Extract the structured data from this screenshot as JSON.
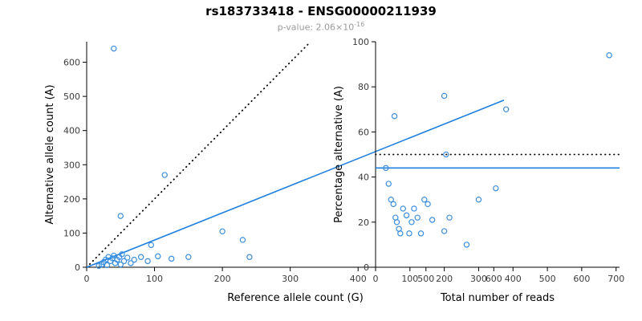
{
  "header": {
    "title": "rs183733418 - ENSG00000211939",
    "pvalue_prefix": "p-value: 2.06×10",
    "pvalue_exponent": "-16"
  },
  "colors": {
    "point": "#3b8ede",
    "fit_line": "#1e7fe0",
    "reference_line": "#000000",
    "axis": "#000000",
    "tick_text": "#3c3c3c",
    "subtitle_text": "#9a9a9a"
  },
  "chart_data": [
    {
      "type": "scatter",
      "name": "allele-counts-scatter",
      "xlabel": "Reference allele count (G)",
      "ylabel": "Alternative allele count (A)",
      "xlim": [
        0,
        615
      ],
      "ylim": [
        0,
        660
      ],
      "xticks": [
        0,
        100,
        200,
        300,
        400,
        500,
        600
      ],
      "yticks": [
        0,
        100,
        200,
        300,
        400,
        500,
        600
      ],
      "grid": false,
      "points": [
        [
          40,
          640
        ],
        [
          115,
          270
        ],
        [
          50,
          150
        ],
        [
          95,
          65
        ],
        [
          200,
          105
        ],
        [
          230,
          80
        ],
        [
          240,
          30
        ],
        [
          150,
          30
        ],
        [
          18,
          4
        ],
        [
          22,
          8
        ],
        [
          25,
          15
        ],
        [
          28,
          22
        ],
        [
          30,
          6
        ],
        [
          32,
          30
        ],
        [
          35,
          18
        ],
        [
          38,
          26
        ],
        [
          40,
          34
        ],
        [
          42,
          12
        ],
        [
          45,
          22
        ],
        [
          48,
          30
        ],
        [
          50,
          8
        ],
        [
          52,
          38
        ],
        [
          55,
          18
        ],
        [
          60,
          28
        ],
        [
          65,
          12
        ],
        [
          70,
          22
        ],
        [
          80,
          30
        ],
        [
          90,
          18
        ],
        [
          105,
          32
        ],
        [
          125,
          25
        ]
      ],
      "lines": [
        {
          "name": "identity-line",
          "style": "dotted",
          "color": "#000000",
          "x": [
            0,
            330
          ],
          "y": [
            0,
            660
          ]
        },
        {
          "name": "fit-line",
          "style": "solid",
          "color": "#1e7fe0",
          "x": [
            0,
            615
          ],
          "y": [
            0,
            489
          ]
        }
      ]
    },
    {
      "type": "scatter",
      "name": "percentage-alternative-scatter",
      "xlabel": "Total number of reads",
      "ylabel": "Percentage alternative (A)",
      "xlim": [
        0,
        710
      ],
      "ylim": [
        0,
        100
      ],
      "xticks": [
        0,
        100,
        200,
        300,
        400,
        500,
        600,
        700
      ],
      "yticks": [
        0,
        20,
        40,
        60,
        80,
        100
      ],
      "grid": false,
      "points": [
        [
          680,
          94
        ],
        [
          380,
          70
        ],
        [
          200,
          76
        ],
        [
          55,
          67
        ],
        [
          205,
          50
        ],
        [
          30,
          44
        ],
        [
          38,
          37
        ],
        [
          45,
          30
        ],
        [
          52,
          28
        ],
        [
          58,
          22
        ],
        [
          62,
          20
        ],
        [
          68,
          17
        ],
        [
          72,
          15
        ],
        [
          80,
          26
        ],
        [
          90,
          23
        ],
        [
          98,
          15
        ],
        [
          105,
          20
        ],
        [
          112,
          26
        ],
        [
          122,
          22
        ],
        [
          132,
          15
        ],
        [
          142,
          30
        ],
        [
          152,
          28
        ],
        [
          165,
          21
        ],
        [
          200,
          16
        ],
        [
          215,
          22
        ],
        [
          265,
          10
        ],
        [
          300,
          30
        ],
        [
          350,
          35
        ]
      ],
      "lines": [
        {
          "name": "fifty-percent-line",
          "style": "dotted",
          "color": "#000000",
          "x": [
            0,
            710
          ],
          "y": [
            50,
            50
          ]
        },
        {
          "name": "mean-percentage-line",
          "style": "solid",
          "color": "#1e7fe0",
          "x": [
            0,
            710
          ],
          "y": [
            44,
            44
          ]
        }
      ]
    }
  ]
}
